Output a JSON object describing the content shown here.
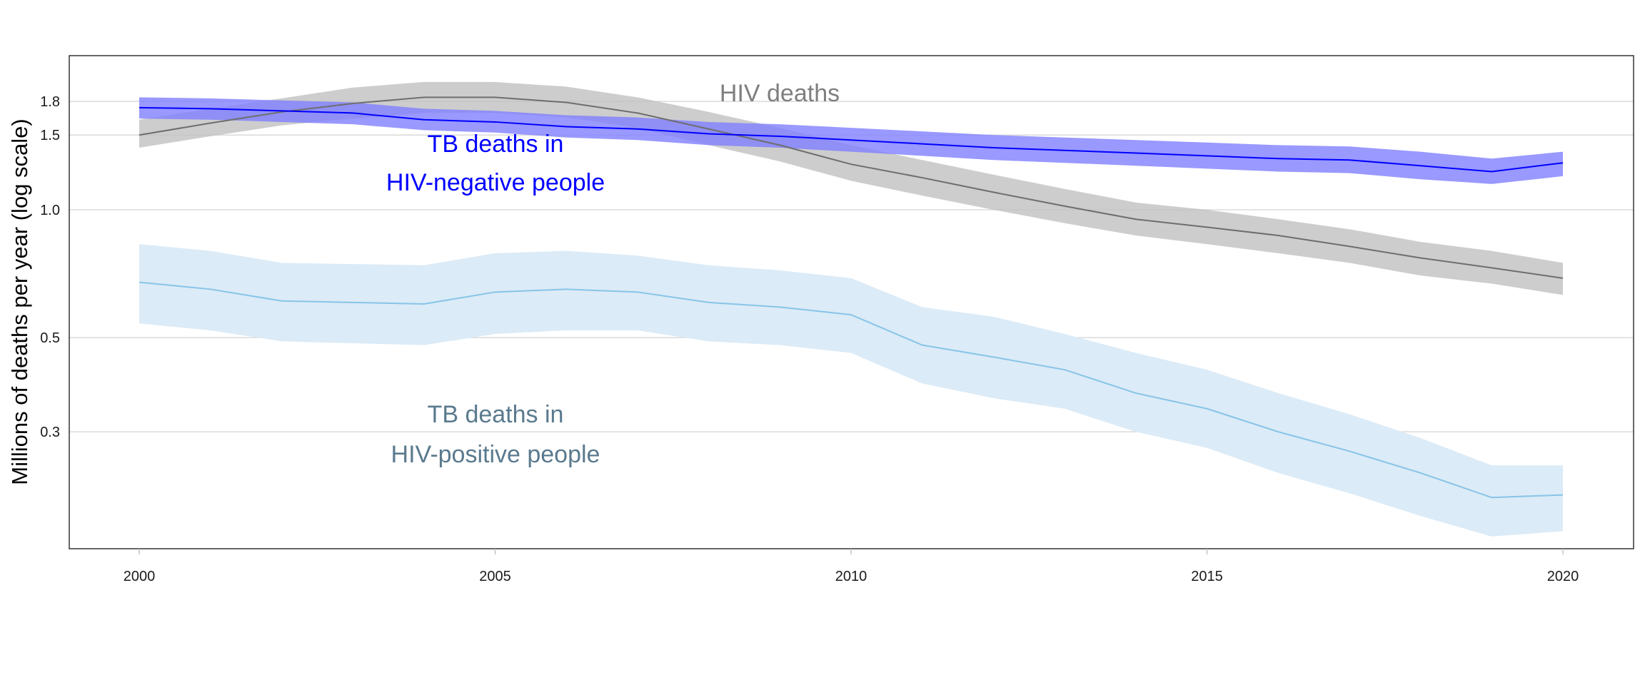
{
  "chart_data": {
    "type": "line",
    "title": "",
    "xlabel": "",
    "ylabel": "Millions of deaths per year (log scale)",
    "y_scale": "log",
    "xlim": [
      1999,
      2021
    ],
    "ylim": [
      0.159,
      2.31
    ],
    "grid": "horizontal major",
    "legend": "none (direct labels)",
    "x_ticks": [
      "2000",
      "2005",
      "2010",
      "2015",
      "2020"
    ],
    "y_ticks": [
      "0.3",
      "0.5",
      "1.0",
      "1.5",
      "1.8"
    ],
    "x": [
      2000,
      2001,
      2002,
      2003,
      2004,
      2005,
      2006,
      2007,
      2008,
      2009,
      2010,
      2011,
      2012,
      2013,
      2014,
      2015,
      2016,
      2017,
      2018,
      2019,
      2020
    ],
    "series": [
      {
        "name": "HIV deaths",
        "line_color": "#6e6e6e",
        "band_color": "#c0c0c0",
        "label_color": "#7f7f7f",
        "values": [
          1.5,
          1.6,
          1.7,
          1.78,
          1.84,
          1.84,
          1.79,
          1.69,
          1.55,
          1.42,
          1.28,
          1.19,
          1.1,
          1.02,
          0.95,
          0.91,
          0.87,
          0.82,
          0.77,
          0.73,
          0.69
        ],
        "lower": [
          1.4,
          1.49,
          1.58,
          1.64,
          1.69,
          1.69,
          1.65,
          1.56,
          1.42,
          1.3,
          1.17,
          1.08,
          1.0,
          0.93,
          0.87,
          0.83,
          0.79,
          0.75,
          0.7,
          0.67,
          0.63
        ],
        "upper": [
          1.63,
          1.73,
          1.83,
          1.94,
          2.0,
          2.0,
          1.95,
          1.84,
          1.7,
          1.56,
          1.42,
          1.31,
          1.21,
          1.12,
          1.04,
          1.0,
          0.95,
          0.9,
          0.84,
          0.8,
          0.75
        ]
      },
      {
        "name": "TB deaths in HIV-negative people",
        "label_lines": [
          "TB deaths in",
          "HIV-negative people"
        ],
        "line_color": "#0000ff",
        "band_color": "#8080ff",
        "label_color": "#0000ff",
        "values": [
          1.74,
          1.73,
          1.71,
          1.69,
          1.63,
          1.61,
          1.57,
          1.55,
          1.51,
          1.49,
          1.46,
          1.43,
          1.4,
          1.38,
          1.36,
          1.34,
          1.32,
          1.31,
          1.27,
          1.23,
          1.29
        ],
        "lower": [
          1.64,
          1.63,
          1.61,
          1.59,
          1.54,
          1.52,
          1.48,
          1.46,
          1.42,
          1.4,
          1.37,
          1.34,
          1.31,
          1.29,
          1.27,
          1.25,
          1.23,
          1.22,
          1.18,
          1.15,
          1.2
        ],
        "upper": [
          1.84,
          1.83,
          1.81,
          1.79,
          1.73,
          1.71,
          1.67,
          1.65,
          1.61,
          1.59,
          1.56,
          1.53,
          1.5,
          1.48,
          1.46,
          1.44,
          1.42,
          1.41,
          1.37,
          1.32,
          1.37
        ]
      },
      {
        "name": "TB deaths in HIV-positive people",
        "label_lines": [
          "TB deaths in",
          "HIV-positive people"
        ],
        "line_color": "#87c4e8",
        "band_color": "#dbebf7",
        "label_color": "#5a7a8e",
        "values": [
          0.675,
          0.65,
          0.61,
          0.605,
          0.6,
          0.64,
          0.65,
          0.64,
          0.605,
          0.59,
          0.566,
          0.48,
          0.45,
          0.42,
          0.37,
          0.34,
          0.3,
          0.27,
          0.24,
          0.21,
          0.213
        ],
        "lower": [
          0.54,
          0.52,
          0.49,
          0.485,
          0.48,
          0.51,
          0.52,
          0.52,
          0.49,
          0.48,
          0.46,
          0.39,
          0.36,
          0.34,
          0.3,
          0.275,
          0.24,
          0.215,
          0.19,
          0.17,
          0.175
        ],
        "upper": [
          0.83,
          0.8,
          0.75,
          0.745,
          0.74,
          0.79,
          0.8,
          0.78,
          0.74,
          0.72,
          0.69,
          0.59,
          0.56,
          0.51,
          0.46,
          0.42,
          0.37,
          0.33,
          0.29,
          0.25,
          0.25
        ]
      }
    ]
  }
}
